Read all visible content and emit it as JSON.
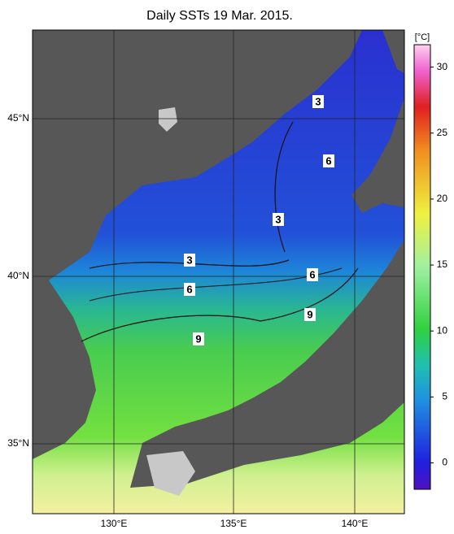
{
  "title": "Daily SSTs 19 Mar. 2015.",
  "lat_labels": [
    "45°N",
    "40°N",
    "35°N"
  ],
  "lon_labels": [
    "130°E",
    "135°E",
    "140°E"
  ],
  "contour_labels": [
    3,
    3,
    3,
    6,
    6,
    6,
    9,
    9
  ],
  "colorbar": {
    "unit": "[°C]",
    "range": [
      -2,
      31.7
    ],
    "ticks": [
      0,
      5,
      10,
      15,
      20,
      25,
      30
    ]
  }
}
